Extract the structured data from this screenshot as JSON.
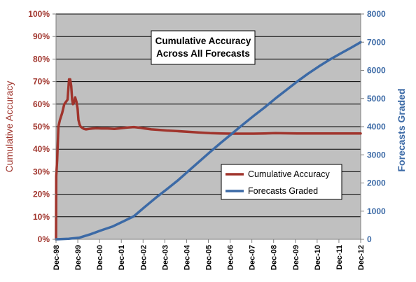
{
  "chart_data": {
    "type": "line",
    "title_lines": [
      "Cumulative Accuracy",
      "Across All Forecasts"
    ],
    "ylabel_left": "Cumulative Accuracy",
    "ylabel_right": "Forecasts Graded",
    "xlim": [
      1998.92,
      2012.92
    ],
    "ylim_left": [
      0,
      100
    ],
    "ylim_right": [
      0,
      8000
    ],
    "y_ticks_left": [
      "0%",
      "10%",
      "20%",
      "30%",
      "40%",
      "50%",
      "60%",
      "70%",
      "80%",
      "90%",
      "100%"
    ],
    "y_ticks_right": [
      "0",
      "1000",
      "2000",
      "3000",
      "4000",
      "5000",
      "6000",
      "7000",
      "8000"
    ],
    "x_ticks": [
      "Dec-98",
      "Dec-99",
      "Dec-00",
      "Dec-01",
      "Dec-02",
      "Dec-03",
      "Dec-04",
      "Dec-05",
      "Dec-06",
      "Dec-07",
      "Dec-08",
      "Dec-09",
      "Dec-10",
      "Dec-11",
      "Dec-12"
    ],
    "grid": true,
    "legend_position": "lower-right (inside plot)",
    "colors": {
      "plot_bg": "#c0c0c0",
      "accuracy": "#a0342c",
      "graded": "#3c6aa6"
    },
    "series": [
      {
        "name": "Cumulative Accuracy",
        "axis": "left",
        "x": [
          1998.92,
          1998.93,
          1998.97,
          1999.03,
          1999.1,
          1999.2,
          1999.3,
          1999.45,
          1999.52,
          1999.57,
          1999.62,
          1999.66,
          1999.7,
          1999.75,
          1999.8,
          1999.86,
          1999.91,
          1999.95,
          2000.0,
          2000.05,
          2000.12,
          2000.2,
          2000.3,
          2000.45,
          2000.6,
          2000.8,
          2001.0,
          2001.3,
          2001.6,
          2001.9,
          2002.2,
          2002.5,
          2002.8,
          2003.0,
          2003.3,
          2003.6,
          2004.0,
          2004.5,
          2005.0,
          2005.5,
          2006.0,
          2006.5,
          2007.0,
          2007.5,
          2008.0,
          2008.5,
          2009.0,
          2010.0,
          2011.0,
          2012.0,
          2012.92
        ],
        "y": [
          0,
          28,
          35,
          50,
          53,
          56,
          60,
          62,
          71,
          71,
          68,
          62,
          60,
          61,
          63,
          61,
          58,
          53,
          51,
          50,
          49.5,
          49,
          48.8,
          49,
          49.2,
          49.3,
          49.2,
          49.2,
          49.0,
          49.3,
          49.6,
          49.8,
          49.5,
          49.2,
          48.8,
          48.6,
          48.3,
          48.0,
          47.7,
          47.4,
          47.1,
          47.0,
          46.9,
          46.9,
          46.9,
          47.0,
          47.1,
          47.0,
          47.0,
          47.0,
          47.0
        ]
      },
      {
        "name": "Forecasts Graded",
        "axis": "right",
        "x": [
          1998.92,
          1999.5,
          2000.0,
          2000.5,
          2001.0,
          2001.5,
          2002.0,
          2002.5,
          2003.0,
          2003.5,
          2004.0,
          2004.5,
          2005.0,
          2005.5,
          2006.0,
          2006.5,
          2007.0,
          2007.5,
          2008.0,
          2008.5,
          2009.0,
          2009.5,
          2010.0,
          2010.5,
          2011.0,
          2011.5,
          2012.0,
          2012.5,
          2012.92
        ],
        "y": [
          0,
          20,
          60,
          180,
          320,
          450,
          630,
          820,
          1150,
          1470,
          1770,
          2080,
          2420,
          2760,
          3100,
          3430,
          3750,
          4070,
          4380,
          4680,
          5000,
          5300,
          5600,
          5880,
          6140,
          6380,
          6600,
          6810,
          7000
        ]
      }
    ]
  }
}
